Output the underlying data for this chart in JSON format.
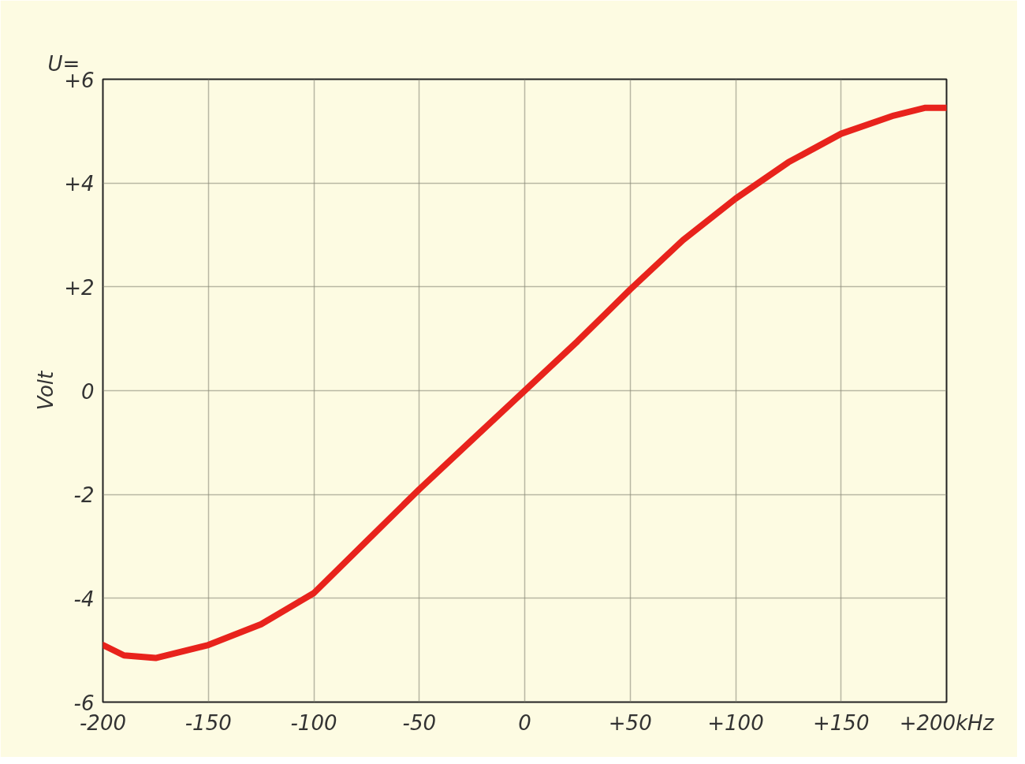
{
  "chart_data": {
    "type": "line",
    "ylabel": "Volt",
    "annotations": [
      "U="
    ],
    "x": [
      -200,
      -190,
      -175,
      -150,
      -125,
      -100,
      -75,
      -50,
      -25,
      0,
      25,
      50,
      75,
      100,
      125,
      150,
      175,
      190,
      200
    ],
    "series": [
      {
        "color": "#e8231c",
        "values": [
          -4.9,
          -5.1,
          -5.15,
          -4.9,
          -4.5,
          -3.9,
          -2.9,
          -1.9,
          -0.95,
          0,
          0.95,
          1.95,
          2.9,
          3.7,
          4.4,
          4.95,
          5.3,
          5.45,
          5.45
        ]
      }
    ],
    "xlim": [
      -200,
      200
    ],
    "ylim": [
      -6,
      6
    ],
    "xticks": [
      -200,
      -150,
      -100,
      -50,
      0,
      {
        "value": 50,
        "label": "+50"
      },
      {
        "value": 100,
        "label": "+100"
      },
      {
        "value": 150,
        "label": "+150"
      },
      {
        "value": 200,
        "label": "+200kHz"
      }
    ],
    "yticks": [
      {
        "value": 6,
        "label": "+6"
      },
      {
        "value": 4,
        "label": "+4"
      },
      {
        "value": 2,
        "label": "+2"
      },
      0,
      -2,
      -4,
      -6
    ],
    "grid": true,
    "marker": "none",
    "line_style": "solid"
  }
}
